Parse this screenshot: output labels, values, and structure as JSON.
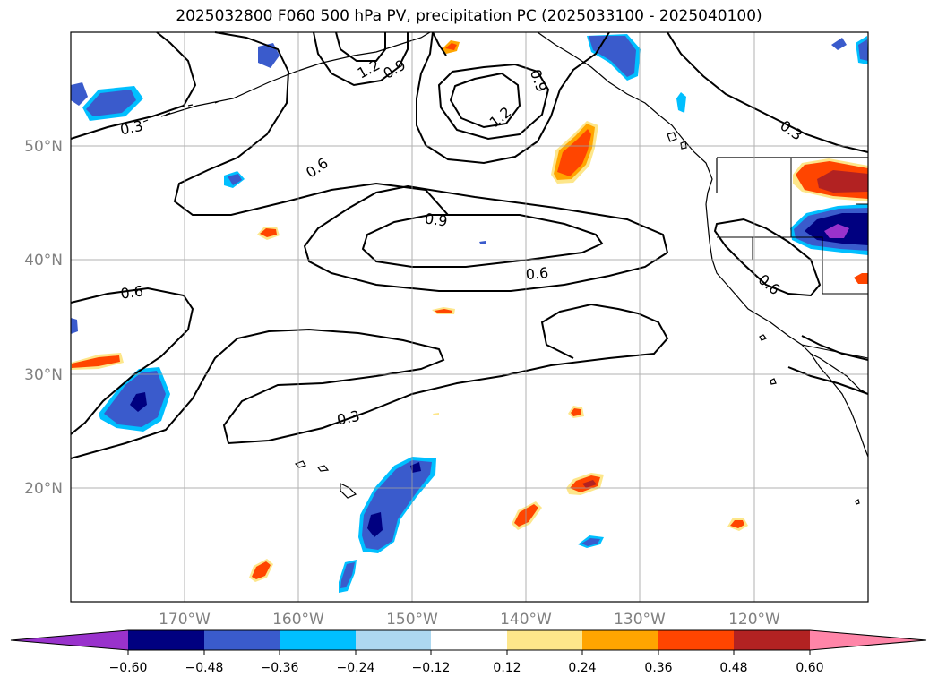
{
  "title": "2025032800 F060 500 hPa PV, precipitation PC (2025033100 - 2025040100)",
  "map": {
    "lat_labels": [
      "50°N",
      "40°N",
      "30°N",
      "20°N"
    ],
    "lon_labels": [
      "170°W",
      "160°W",
      "150°W",
      "140°W",
      "130°W",
      "120°W"
    ],
    "contour_labels": [
      "0.3",
      "1.2",
      "0.9",
      "0.9",
      "1.2",
      "0.6",
      "0.9",
      "0.6",
      "0.6",
      "0.6",
      "0.3",
      "0.3"
    ]
  },
  "colorbar": {
    "extend": "both",
    "ticks": [
      "−0.60",
      "−0.48",
      "−0.36",
      "−0.24",
      "−0.12",
      "0.12",
      "0.24",
      "0.36",
      "0.48",
      "0.60"
    ],
    "colors": {
      "under": "#9932cc",
      "c1": "#000080",
      "c2": "#3a5bcc",
      "c3": "#00bfff",
      "c4": "#add8f0",
      "white": "#ffffff",
      "c6": "#fde68a",
      "c7": "#ffa500",
      "c8": "#ff4500",
      "c9": "#b22222",
      "over": "#ff85a8"
    }
  }
}
